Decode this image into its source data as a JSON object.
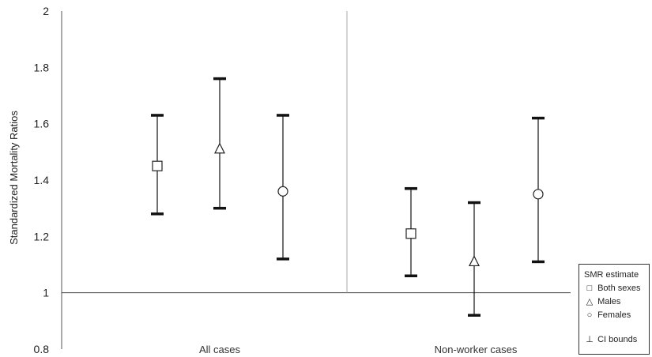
{
  "chart_data": {
    "type": "scatter",
    "title": "",
    "ylabel": "Standardized Mortality Ratios",
    "ylim": [
      0.8,
      2
    ],
    "yticks": [
      "0.8",
      "1",
      "1.2",
      "1.4",
      "1.6",
      "1.8",
      "2"
    ],
    "reference_line": 1,
    "groups": [
      "All cases",
      "Non-worker cases"
    ],
    "series": [
      {
        "name": "Both sexes",
        "marker": "square",
        "estimates": [
          1.45,
          1.21
        ],
        "lower": [
          1.28,
          1.06
        ],
        "upper": [
          1.63,
          1.37
        ]
      },
      {
        "name": "Males",
        "marker": "triangle",
        "estimates": [
          1.51,
          1.11
        ],
        "lower": [
          1.3,
          0.92
        ],
        "upper": [
          1.76,
          1.32
        ]
      },
      {
        "name": "Females",
        "marker": "circle",
        "estimates": [
          1.36,
          1.35
        ],
        "lower": [
          1.12,
          1.11
        ],
        "upper": [
          1.63,
          1.62
        ]
      }
    ],
    "legend": {
      "position": "bottom-right",
      "title": "SMR estimate",
      "ci_label": "CI bounds"
    },
    "grid": false
  }
}
